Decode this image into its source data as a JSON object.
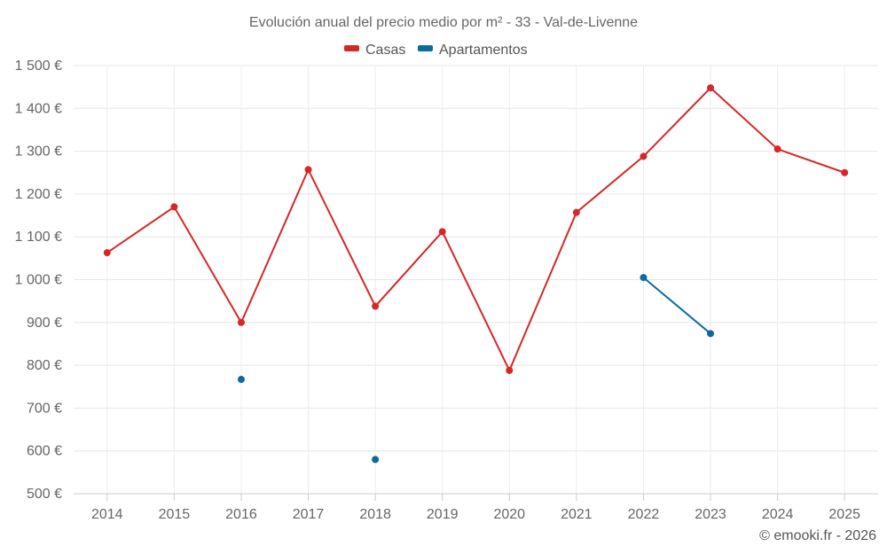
{
  "chart_data": {
    "type": "line",
    "title": "Evolución anual del precio medio por m² - 33 - Val-de-Livenne",
    "categories": [
      "2014",
      "2015",
      "2016",
      "2017",
      "2018",
      "2019",
      "2020",
      "2021",
      "2022",
      "2023",
      "2024",
      "2025"
    ],
    "series": [
      {
        "name": "Casas",
        "color": "#d62728",
        "values": [
          1063,
          1170,
          900,
          1257,
          938,
          1112,
          788,
          1157,
          1288,
          1448,
          1305,
          1250
        ]
      },
      {
        "name": "Apartamentos",
        "color": "#0a6aa1",
        "values": [
          null,
          null,
          767,
          null,
          580,
          null,
          null,
          null,
          1005,
          874,
          null,
          null
        ]
      }
    ],
    "ylim": [
      500,
      1500
    ],
    "yticks": [
      500,
      600,
      700,
      800,
      900,
      1000,
      1100,
      1200,
      1300,
      1400,
      1500
    ],
    "ytick_labels": [
      "500 €",
      "600 €",
      "700 €",
      "800 €",
      "900 €",
      "1 000 €",
      "1 100 €",
      "1 200 €",
      "1 300 €",
      "1 400 €",
      "1 500 €"
    ],
    "grid": true,
    "legend_position": "top-center",
    "xlabel": "",
    "ylabel": ""
  },
  "credit": "© emooki.fr - 2026"
}
